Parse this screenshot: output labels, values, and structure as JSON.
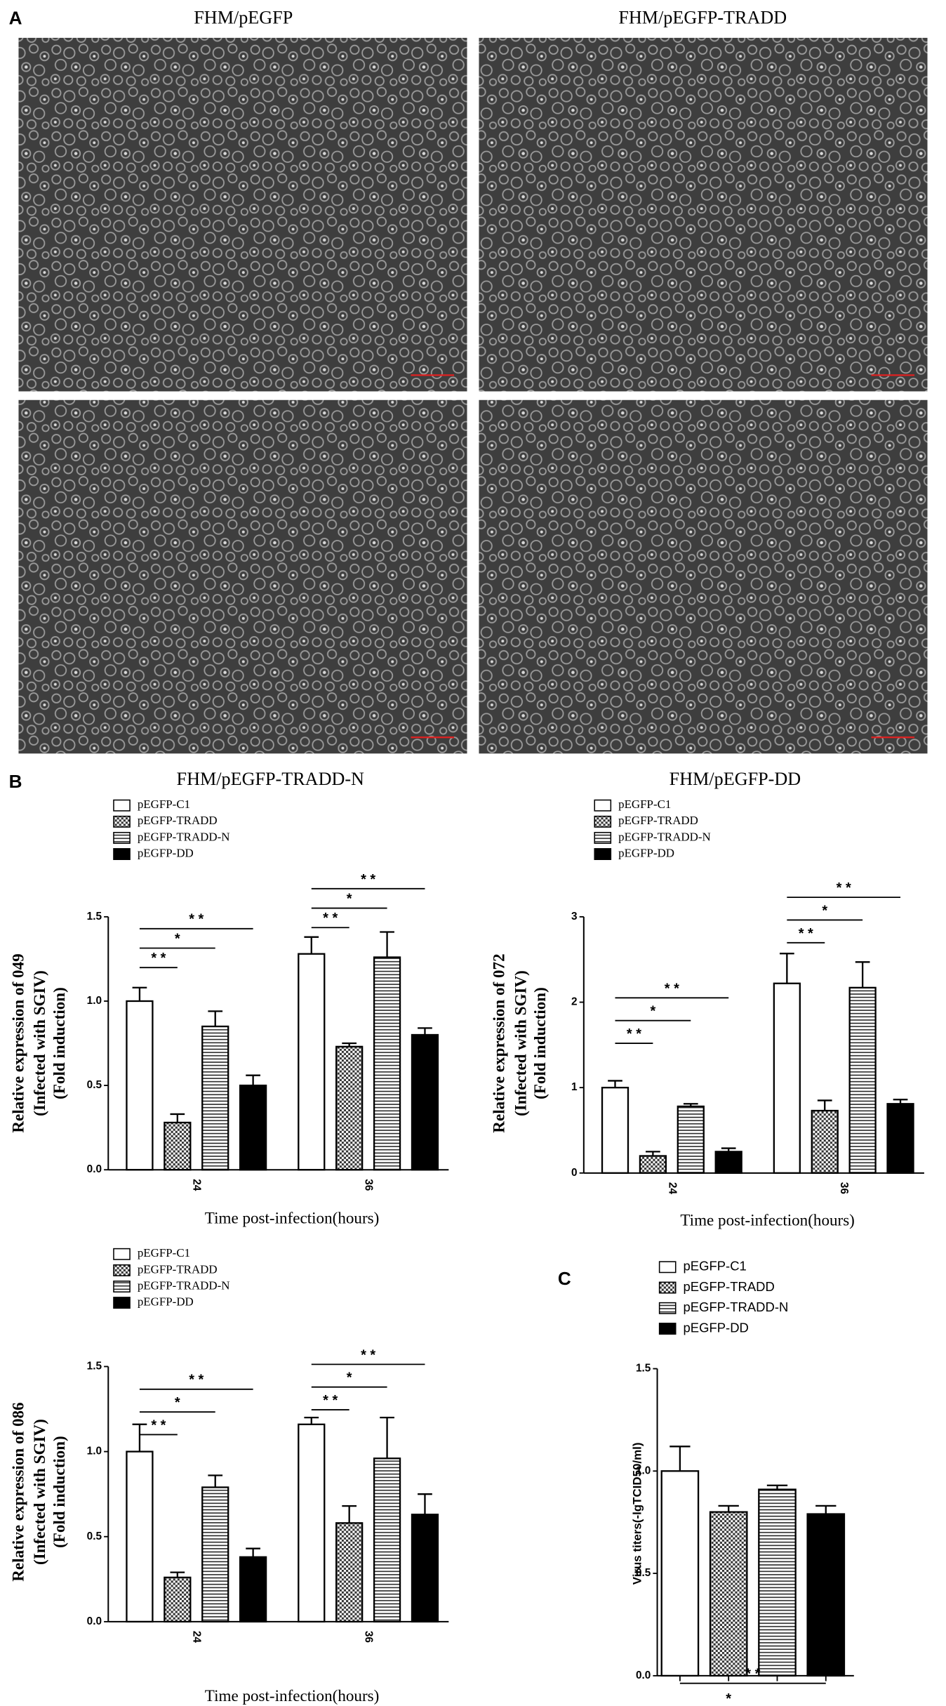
{
  "panel_labels": [
    "A",
    "B",
    "C"
  ],
  "image_titles": [
    "FHM/pEGFP",
    "FHM/pEGFP-TRADD",
    "FHM/pEGFP-TRADD-N",
    "FHM/pEGFP-DD"
  ],
  "chart_data": [
    {
      "type": "bar",
      "y_label": [
        "Relative expression of 049",
        "(Infected with SGIV)",
        "(Fold induction)"
      ],
      "x_label": "Time post-infection(hours)",
      "categories": [
        "24",
        "36"
      ],
      "ylim": [
        0,
        1.5
      ],
      "yticks": [
        {
          "value": 0,
          "label": "0.0"
        },
        {
          "value": 0.5,
          "label": "0.5"
        },
        {
          "value": 1,
          "label": "1.0"
        },
        {
          "value": 1.5,
          "label": "1.5"
        }
      ],
      "series": [
        {
          "name": "pEGFP-C1",
          "color": "#ffffff",
          "pattern": "none",
          "values": [
            1.0,
            1.28
          ],
          "errors": [
            0.08,
            0.1
          ]
        },
        {
          "name": "pEGFP-TRADD",
          "color": "#000000",
          "pattern": "checker",
          "values": [
            0.28,
            0.73
          ],
          "errors": [
            0.05,
            0.02
          ]
        },
        {
          "name": "pEGFP-TRADD-N",
          "color": "#000000",
          "pattern": "hlines",
          "values": [
            0.85,
            1.26
          ],
          "errors": [
            0.09,
            0.15
          ]
        },
        {
          "name": "pEGFP-DD",
          "color": "#000000",
          "pattern": "solid",
          "values": [
            0.5,
            0.8
          ],
          "errors": [
            0.06,
            0.04
          ]
        }
      ],
      "annotations": [
        {
          "text": "* *",
          "category": 0,
          "series": [
            0,
            1
          ]
        },
        {
          "text": "*",
          "category": 0,
          "series": [
            0,
            2
          ]
        },
        {
          "text": "* *",
          "category": 0,
          "series": [
            0,
            3
          ]
        },
        {
          "text": "* *",
          "category": 1,
          "series": [
            0,
            1
          ]
        },
        {
          "text": "*",
          "category": 1,
          "series": [
            0,
            2
          ]
        },
        {
          "text": "* *",
          "category": 1,
          "series": [
            0,
            3
          ]
        }
      ]
    },
    {
      "type": "bar",
      "y_label": [
        "Relative expression of 072",
        "(Infected with SGIV)",
        "(Fold induction)"
      ],
      "x_label": "Time post-infection(hours)",
      "categories": [
        "24",
        "36"
      ],
      "ylim": [
        0,
        3
      ],
      "yticks": [
        0,
        1,
        2,
        3
      ],
      "series": [
        {
          "name": "pEGFP-C1",
          "color": "#ffffff",
          "pattern": "none",
          "values": [
            1.0,
            2.22
          ],
          "errors": [
            0.08,
            0.35
          ]
        },
        {
          "name": "pEGFP-TRADD",
          "color": "#000000",
          "pattern": "checker",
          "values": [
            0.2,
            0.73
          ],
          "errors": [
            0.05,
            0.12
          ]
        },
        {
          "name": "pEGFP-TRADD-N",
          "color": "#000000",
          "pattern": "hlines",
          "values": [
            0.78,
            2.17
          ],
          "errors": [
            0.03,
            0.3
          ]
        },
        {
          "name": "pEGFP-DD",
          "color": "#000000",
          "pattern": "solid",
          "values": [
            0.25,
            0.81
          ],
          "errors": [
            0.04,
            0.05
          ]
        }
      ],
      "annotations": [
        {
          "text": "* *",
          "category": 0,
          "series": [
            0,
            1
          ]
        },
        {
          "text": "*",
          "category": 0,
          "series": [
            0,
            2
          ]
        },
        {
          "text": "* *",
          "category": 0,
          "series": [
            0,
            3
          ]
        },
        {
          "text": "* *",
          "category": 1,
          "series": [
            0,
            1
          ]
        },
        {
          "text": "*",
          "category": 1,
          "series": [
            0,
            2
          ]
        },
        {
          "text": "* *",
          "category": 1,
          "series": [
            0,
            3
          ]
        }
      ]
    },
    {
      "type": "bar",
      "y_label": [
        "Relative expression of 086",
        "(Infected with SGIV)",
        "(Fold induction)"
      ],
      "x_label": "Time post-infection(hours)",
      "categories": [
        "24",
        "36"
      ],
      "ylim": [
        0,
        1.5
      ],
      "yticks": [
        {
          "value": 0,
          "label": "0.0"
        },
        {
          "value": 0.5,
          "label": "0.5"
        },
        {
          "value": 1,
          "label": "1.0"
        },
        {
          "value": 1.5,
          "label": "1.5"
        }
      ],
      "series": [
        {
          "name": "pEGFP-C1",
          "color": "#ffffff",
          "pattern": "none",
          "values": [
            1.0,
            1.16
          ],
          "errors": [
            0.16,
            0.04
          ]
        },
        {
          "name": "pEGFP-TRADD",
          "color": "#000000",
          "pattern": "checker",
          "values": [
            0.26,
            0.58
          ],
          "errors": [
            0.03,
            0.1
          ]
        },
        {
          "name": "pEGFP-TRADD-N",
          "color": "#000000",
          "pattern": "hlines",
          "values": [
            0.79,
            0.96
          ],
          "errors": [
            0.07,
            0.24
          ]
        },
        {
          "name": "pEGFP-DD",
          "color": "#000000",
          "pattern": "solid",
          "values": [
            0.38,
            0.63
          ],
          "errors": [
            0.05,
            0.12
          ]
        }
      ],
      "annotations": [
        {
          "text": "* *",
          "category": 0,
          "series": [
            0,
            1
          ]
        },
        {
          "text": "*",
          "category": 0,
          "series": [
            0,
            2
          ]
        },
        {
          "text": "* *",
          "category": 0,
          "series": [
            0,
            3
          ]
        },
        {
          "text": "* *",
          "category": 1,
          "series": [
            0,
            1
          ]
        },
        {
          "text": "*",
          "category": 1,
          "series": [
            0,
            2
          ]
        },
        {
          "text": "* *",
          "category": 1,
          "series": [
            0,
            3
          ]
        }
      ]
    },
    {
      "type": "bar",
      "y_label": [
        "Virus titers(-lgTCID50/ml)"
      ],
      "categories": [
        null
      ],
      "ylim": [
        0,
        1.5
      ],
      "yticks": [
        {
          "value": 0,
          "label": "0.0"
        },
        {
          "value": 0.5,
          "label": "0.5"
        },
        {
          "value": 1,
          "label": "1.0"
        },
        {
          "value": 1.5,
          "label": "1.5"
        }
      ],
      "series": [
        {
          "name": "pEGFP-C1",
          "color": "#ffffff",
          "pattern": "none",
          "values": [
            1.0
          ],
          "errors": [
            0.12
          ]
        },
        {
          "name": "pEGFP-TRADD",
          "color": "#000000",
          "pattern": "checker",
          "values": [
            0.8
          ],
          "errors": [
            0.03
          ]
        },
        {
          "name": "pEGFP-TRADD-N",
          "color": "#000000",
          "pattern": "hlines",
          "values": [
            0.91
          ],
          "errors": [
            0.02
          ]
        },
        {
          "name": "pEGFP-DD",
          "color": "#000000",
          "pattern": "solid",
          "values": [
            0.79
          ],
          "errors": [
            0.04
          ]
        }
      ],
      "annotations": [
        {
          "text": "* *",
          "category": 0,
          "series": [
            0,
            1
          ]
        },
        {
          "text": "*",
          "category": 0,
          "series": [
            0,
            2
          ]
        },
        {
          "text": "* *",
          "category": 0,
          "series": [
            0,
            3
          ]
        }
      ]
    }
  ]
}
